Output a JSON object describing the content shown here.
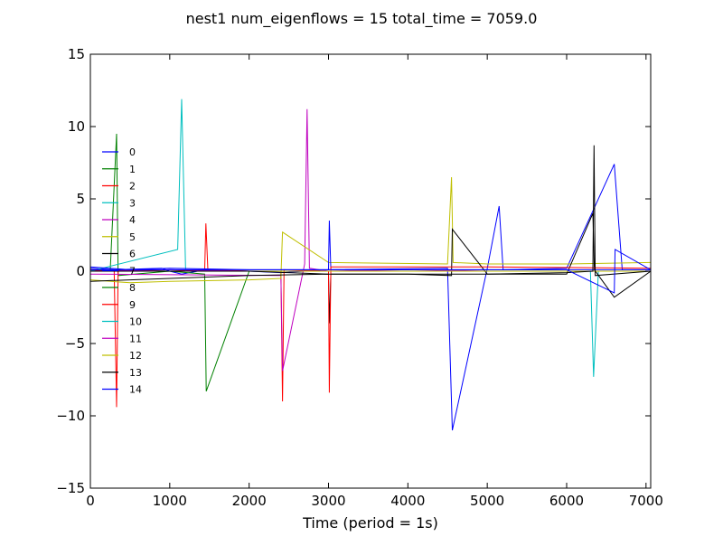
{
  "chart_data": {
    "type": "line",
    "title": "nest1 num_eigenflows = 15 total_time = 7059.0",
    "xlabel": "Time (period = 1s)",
    "ylabel": "",
    "xlim": [
      0,
      7059
    ],
    "ylim": [
      -15,
      15
    ],
    "xticks": [
      0,
      1000,
      2000,
      3000,
      4000,
      5000,
      6000,
      7000
    ],
    "yticks": [
      -15,
      -10,
      -5,
      0,
      5,
      10,
      15
    ],
    "xtick_labels": [
      "0",
      "1000",
      "2000",
      "3000",
      "4000",
      "5000",
      "6000",
      "7000"
    ],
    "ytick_labels": [
      "−15",
      "−10",
      "−5",
      "0",
      "5",
      "10",
      "15"
    ],
    "grid": false,
    "legend_position": "left",
    "series": [
      {
        "name": "0",
        "color": "#0000ff",
        "x": [
          0,
          300,
          900,
          1000,
          1150,
          1450,
          2000,
          2400,
          3000,
          4500,
          4560,
          5000,
          5150,
          5200,
          6000,
          6600,
          6700,
          7059
        ],
        "y": [
          0.2,
          0.1,
          0.2,
          0.0,
          -0.2,
          0.1,
          0.0,
          -0.1,
          0.1,
          0.2,
          -11,
          0.2,
          4.5,
          0.1,
          0.2,
          7.4,
          0.1,
          0.1
        ]
      },
      {
        "name": "1",
        "color": "#008000",
        "x": [
          0,
          250,
          330,
          350,
          1000,
          1440,
          1460,
          2000,
          3000,
          7059
        ],
        "y": [
          0.0,
          0.1,
          9.5,
          -0.3,
          0.0,
          -0.2,
          -8.3,
          0.0,
          0.0,
          0.0
        ]
      },
      {
        "name": "2",
        "color": "#ff0000",
        "x": [
          0,
          300,
          330,
          350,
          1000,
          1440,
          1455,
          1480,
          2000,
          2400,
          2420,
          2440,
          3000,
          7059
        ],
        "y": [
          0.0,
          0.1,
          -9.4,
          0.0,
          0.0,
          0.1,
          3.3,
          0.1,
          0.0,
          0.0,
          -9.0,
          0.1,
          0.0,
          0.0
        ]
      },
      {
        "name": "3",
        "color": "#00bfbf",
        "x": [
          0,
          1100,
          1150,
          1200,
          2000,
          6300,
          6340,
          6400,
          7059
        ],
        "y": [
          0.0,
          1.5,
          11.9,
          0.0,
          0.0,
          0.0,
          -7.3,
          0.0,
          0.0
        ]
      },
      {
        "name": "4",
        "color": "#bf00bf",
        "x": [
          0,
          2400,
          2420,
          2700,
          2730,
          2760,
          3000,
          7059
        ],
        "y": [
          -0.2,
          -0.3,
          -6.9,
          0.5,
          11.2,
          0.2,
          0.0,
          0.0
        ]
      },
      {
        "name": "5",
        "color": "#bfbf00",
        "x": [
          0,
          500,
          1000,
          2000,
          2400,
          2420,
          3000,
          4500,
          4550,
          4570,
          5000,
          6000,
          7059
        ],
        "y": [
          -0.6,
          -0.8,
          -0.7,
          -0.6,
          -0.5,
          2.7,
          0.6,
          0.5,
          6.5,
          0.6,
          0.5,
          0.5,
          0.6
        ]
      },
      {
        "name": "6",
        "color": "#000000",
        "x": [
          0,
          1000,
          2000,
          3000,
          3010,
          3030,
          4000,
          4550,
          4560,
          5000,
          6000,
          6330,
          6350,
          6600,
          7059
        ],
        "y": [
          -0.7,
          -0.5,
          -0.3,
          -0.2,
          -3.6,
          -0.2,
          -0.2,
          -0.3,
          2.9,
          -0.2,
          -0.2,
          4.0,
          0.1,
          -1.8,
          0.0
        ]
      },
      {
        "name": "7",
        "color": "#0000ff",
        "x": [
          0,
          500,
          1000,
          2000,
          3000,
          3010,
          3030,
          7059
        ],
        "y": [
          0.3,
          0.1,
          0.2,
          0.1,
          0.1,
          3.5,
          0.1,
          0.1
        ]
      },
      {
        "name": "8",
        "color": "#008000",
        "x": [
          0,
          1000,
          2000,
          3000,
          7059
        ],
        "y": [
          0.1,
          0.0,
          0.0,
          0.0,
          0.0
        ]
      },
      {
        "name": "9",
        "color": "#ff0000",
        "x": [
          0,
          1000,
          2000,
          3000,
          3010,
          3030,
          4000,
          5000,
          7059
        ],
        "y": [
          0.1,
          0.0,
          0.0,
          0.0,
          -8.4,
          0.3,
          0.3,
          0.3,
          0.2
        ]
      },
      {
        "name": "10",
        "color": "#00bfbf",
        "x": [
          0,
          1000,
          2000,
          3000,
          4000,
          5000,
          7059
        ],
        "y": [
          0.0,
          0.0,
          0.0,
          0.0,
          0.0,
          0.0,
          0.0
        ]
      },
      {
        "name": "11",
        "color": "#bf00bf",
        "x": [
          0,
          1000,
          2000,
          3000,
          4000,
          5000,
          7059
        ],
        "y": [
          0.0,
          0.1,
          0.0,
          0.0,
          0.1,
          0.0,
          0.0
        ]
      },
      {
        "name": "12",
        "color": "#bfbf00",
        "x": [
          0,
          1000,
          2000,
          3000,
          4000,
          5000,
          7059
        ],
        "y": [
          0.0,
          0.0,
          0.0,
          0.0,
          0.0,
          0.0,
          0.0
        ]
      },
      {
        "name": "13",
        "color": "#000000",
        "x": [
          0,
          1000,
          2000,
          3000,
          4000,
          5000,
          6000,
          6330,
          6345,
          6360,
          7059
        ],
        "y": [
          0.0,
          0.0,
          0.0,
          -0.2,
          -0.2,
          -0.2,
          -0.1,
          0.0,
          8.7,
          -0.3,
          0.0
        ]
      },
      {
        "name": "14",
        "color": "#0000ff",
        "x": [
          0,
          1000,
          2000,
          3000,
          4000,
          5000,
          6000,
          6600,
          6610,
          7059
        ],
        "y": [
          0.1,
          0.1,
          0.1,
          0.1,
          0.1,
          0.1,
          0.1,
          -1.5,
          1.5,
          0.1
        ]
      }
    ]
  }
}
